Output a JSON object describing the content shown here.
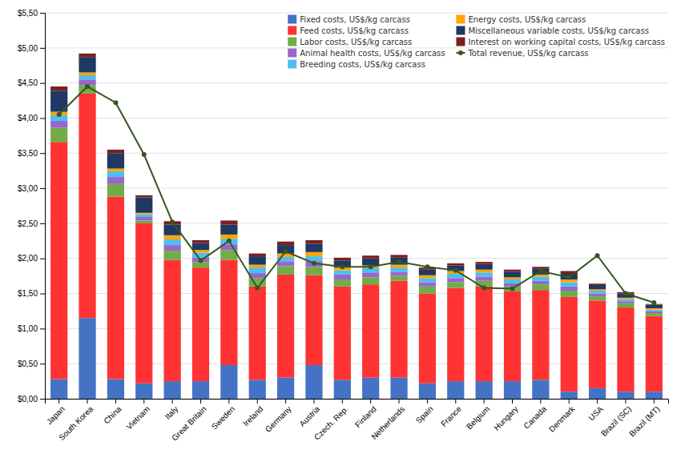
{
  "chart_data": {
    "type": "bar",
    "stacked": true,
    "grid": true,
    "legend": "upper right",
    "categories": [
      "Japan",
      "South Korea",
      "China",
      "Vietnam",
      "Italy",
      "Great Britain",
      "Sweden",
      "Ireland",
      "Germany",
      "Austria",
      "Czech. Rep.",
      "Finland",
      "Netherlands",
      "Spain",
      "France",
      "Belgium",
      "Hungary",
      "Canada",
      "Denmark",
      "USA",
      "Brazil (SC)",
      "Brazil (MT)"
    ],
    "series": [
      {
        "name": "Fixed costs, US$/kg carcass",
        "color": "#4472C4",
        "values": [
          0.28,
          1.15,
          0.28,
          0.22,
          0.25,
          0.25,
          0.48,
          0.27,
          0.3,
          0.48,
          0.27,
          0.3,
          0.3,
          0.22,
          0.25,
          0.25,
          0.25,
          0.27,
          0.1,
          0.15,
          0.1,
          0.1
        ]
      },
      {
        "name": "Feed costs, US$/kg carcass",
        "color": "#FF3333",
        "values": [
          3.38,
          3.2,
          2.6,
          2.28,
          1.73,
          1.62,
          1.5,
          1.33,
          1.47,
          1.28,
          1.33,
          1.33,
          1.38,
          1.28,
          1.33,
          1.35,
          1.28,
          1.28,
          1.35,
          1.25,
          1.2,
          1.08
        ]
      },
      {
        "name": "Labor costs, US$/kg carcass",
        "color": "#70AD47",
        "values": [
          0.2,
          0.12,
          0.18,
          0.04,
          0.13,
          0.08,
          0.14,
          0.12,
          0.12,
          0.12,
          0.1,
          0.1,
          0.07,
          0.1,
          0.08,
          0.08,
          0.07,
          0.08,
          0.09,
          0.06,
          0.06,
          0.04
        ]
      },
      {
        "name": "Animal health costs, US$/kg carcass",
        "color": "#9966CC",
        "values": [
          0.1,
          0.08,
          0.1,
          0.05,
          0.08,
          0.06,
          0.08,
          0.07,
          0.07,
          0.08,
          0.07,
          0.07,
          0.06,
          0.06,
          0.06,
          0.06,
          0.05,
          0.05,
          0.06,
          0.04,
          0.03,
          0.03
        ]
      },
      {
        "name": "Breeding costs, US$/kg carcass",
        "color": "#4DBEEE",
        "values": [
          0.08,
          0.06,
          0.08,
          0.04,
          0.08,
          0.07,
          0.08,
          0.08,
          0.06,
          0.07,
          0.06,
          0.06,
          0.06,
          0.06,
          0.06,
          0.06,
          0.05,
          0.06,
          0.06,
          0.04,
          0.03,
          0.02
        ]
      },
      {
        "name": "Energy costs, US$/kg carcass",
        "color": "#FFA500",
        "values": [
          0.05,
          0.04,
          0.04,
          0.02,
          0.06,
          0.04,
          0.06,
          0.04,
          0.05,
          0.06,
          0.04,
          0.04,
          0.04,
          0.04,
          0.04,
          0.04,
          0.03,
          0.03,
          0.04,
          0.02,
          0.02,
          0.02
        ]
      },
      {
        "name": "Miscellaneous variable costs, US$/kg carcass",
        "color": "#1F3864",
        "values": [
          0.3,
          0.22,
          0.22,
          0.22,
          0.15,
          0.1,
          0.14,
          0.12,
          0.12,
          0.12,
          0.1,
          0.1,
          0.1,
          0.08,
          0.08,
          0.08,
          0.08,
          0.08,
          0.08,
          0.06,
          0.06,
          0.05
        ]
      },
      {
        "name": "Interest on working capital costs, US$/kg carcass",
        "color": "#7B2020",
        "values": [
          0.06,
          0.05,
          0.05,
          0.03,
          0.05,
          0.04,
          0.06,
          0.04,
          0.05,
          0.05,
          0.04,
          0.04,
          0.04,
          0.03,
          0.03,
          0.03,
          0.03,
          0.03,
          0.04,
          0.02,
          0.02,
          0.01
        ]
      },
      {
        "name": "Total revenue, US$/kg carcass",
        "type": "line",
        "marker": "circle",
        "color": "#375623",
        "values": [
          4.05,
          4.45,
          4.22,
          3.48,
          2.52,
          1.97,
          2.25,
          1.58,
          2.1,
          1.93,
          1.88,
          1.88,
          1.95,
          1.88,
          1.83,
          1.58,
          1.57,
          1.82,
          1.73,
          2.04,
          1.5,
          1.37
        ]
      }
    ],
    "ylim": [
      0.0,
      5.5
    ],
    "yticks": [
      {
        "value": 0.0,
        "label": "$0,00"
      },
      {
        "value": 0.5,
        "label": "$0,50"
      },
      {
        "value": 1.0,
        "label": "$1,00"
      },
      {
        "value": 1.5,
        "label": "$1,50"
      },
      {
        "value": 2.0,
        "label": "$2,00"
      },
      {
        "value": 2.5,
        "label": "$2,50"
      },
      {
        "value": 3.0,
        "label": "$3,00"
      },
      {
        "value": 3.5,
        "label": "$3,50"
      },
      {
        "value": 4.0,
        "label": "$4,00"
      },
      {
        "value": 4.5,
        "label": "$4,50"
      },
      {
        "value": 5.0,
        "label": "$5,00"
      },
      {
        "value": 5.5,
        "label": "$5,50"
      }
    ]
  }
}
